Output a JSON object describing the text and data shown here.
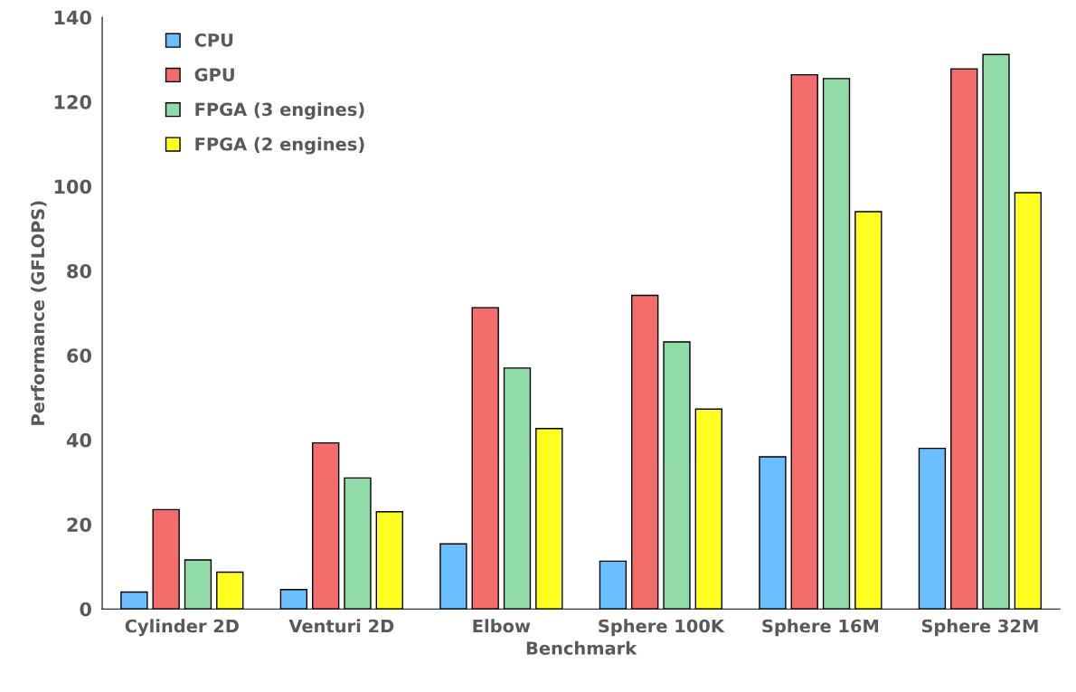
{
  "chart_data": {
    "type": "bar",
    "xlabel": "Benchmark",
    "ylabel": "Performance (GFLOPS)",
    "categories": [
      "Cylinder 2D",
      "Venturi 2D",
      "Elbow",
      "Sphere 100K",
      "Sphere 16M",
      "Sphere 32M"
    ],
    "series": [
      {
        "name": "CPU",
        "color": "#6bbfff",
        "values": [
          4,
          4.6,
          15.4,
          11.3,
          36,
          38
        ]
      },
      {
        "name": "GPU",
        "color": "#f46d6d",
        "values": [
          23.5,
          39.3,
          71.3,
          74.2,
          126.4,
          127.8
        ]
      },
      {
        "name": "FPGA (3 engines)",
        "color": "#90dba8",
        "values": [
          11.6,
          31,
          57,
          63.2,
          125.5,
          131.2
        ]
      },
      {
        "name": "FPGA (2 engines)",
        "color": "#ffff22",
        "values": [
          8.7,
          23,
          42.7,
          47.3,
          94,
          98.5
        ]
      }
    ],
    "ylim": [
      0,
      140
    ],
    "yticks": [
      0,
      20,
      40,
      60,
      80,
      100,
      120,
      140
    ],
    "grid": false,
    "legend": "top left"
  }
}
